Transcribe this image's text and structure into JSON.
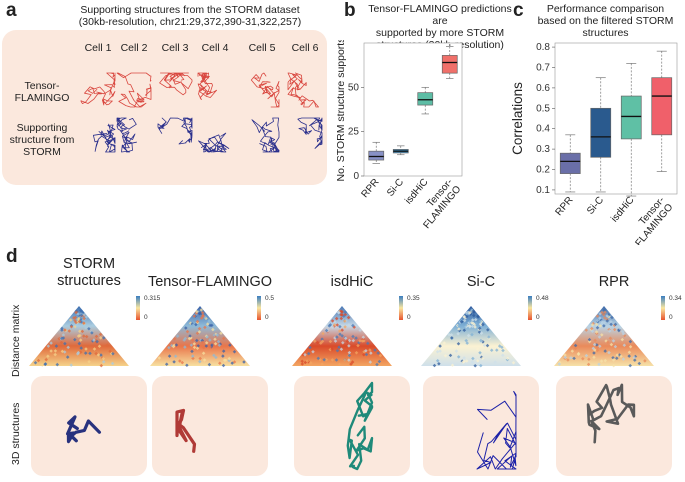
{
  "panel_a": {
    "label": "a",
    "title_line1": "Supporting structures from the STORM dataset",
    "title_line2": "(30kb-resolution, chr21:29,372,390-31,322,257)",
    "cells": [
      "Cell 1",
      "Cell 2",
      "Cell 3",
      "Cell 4",
      "Cell 5",
      "Cell 6"
    ],
    "row1_label_line1": "Tensor-",
    "row1_label_line2": "FLAMINGO",
    "row2_label_line1": "Supporting",
    "row2_label_line2": "structure from",
    "row2_label_line3": "STORM",
    "colors": {
      "row1": "#d9473f",
      "row2": "#2a2f8c",
      "background": "#fbe8dd"
    }
  },
  "panel_b": {
    "label": "b",
    "title_line1": "Tensor-FLAMINGO predictions are",
    "title_line2": "supported by more STORM",
    "title_line3": "structures (30kb-resolution)"
  },
  "panel_c": {
    "label": "c",
    "title_line1": "Performance comparison",
    "title_line2": "based on the filtered STORM",
    "title_line3": "structures"
  },
  "chart_data": [
    {
      "type": "box",
      "ylabel": "No. STORM structure supports",
      "ylim": [
        0,
        75
      ],
      "yticks": [
        "0",
        "25",
        "50"
      ],
      "ytick_values": [
        0,
        25,
        50
      ],
      "categories": [
        "RPR",
        "Si-C",
        "isdHiC",
        "Tensor-FLAMINGO"
      ],
      "category_labels": [
        [
          "RPR"
        ],
        [
          "Si-C"
        ],
        [
          "isdHiC"
        ],
        [
          "Tensor-",
          "FLAMINGO"
        ]
      ],
      "colors": [
        "#8891c6",
        "#3a86b8",
        "#5dbda5",
        "#f0706a"
      ],
      "boxes": [
        {
          "min": 7,
          "q1": 9,
          "median": 11,
          "q3": 14,
          "max": 19
        },
        {
          "min": 12,
          "q1": 13,
          "median": 14,
          "q3": 15,
          "max": 17
        },
        {
          "min": 35,
          "q1": 40,
          "median": 43,
          "q3": 47,
          "max": 50
        },
        {
          "min": 55,
          "q1": 58,
          "median": 64,
          "q3": 68,
          "max": 73
        }
      ],
      "outliers": [
        {
          "category": 3,
          "value": 93
        }
      ]
    },
    {
      "type": "box",
      "ylabel": "Correlations",
      "ylim": [
        0.08,
        0.82
      ],
      "yticks": [
        "0.1",
        "0.2",
        "0.3",
        "0.4",
        "0.5",
        "0.6",
        "0.7",
        "0.8"
      ],
      "ytick_values": [
        0.1,
        0.2,
        0.3,
        0.4,
        0.5,
        0.6,
        0.7,
        0.8
      ],
      "categories": [
        "RPR",
        "Si-C",
        "isdHiC",
        "Tensor-FLAMINGO"
      ],
      "category_labels": [
        [
          "RPR"
        ],
        [
          "Si-C"
        ],
        [
          "isdHiC"
        ],
        [
          "Tensor-",
          "FLAMINGO"
        ]
      ],
      "colors": [
        "#6a6fa8",
        "#2a5a8e",
        "#5fc0a5",
        "#f0606a"
      ],
      "boxes": [
        {
          "min": 0.09,
          "q1": 0.18,
          "median": 0.24,
          "q3": 0.28,
          "max": 0.37
        },
        {
          "min": 0.09,
          "q1": 0.26,
          "median": 0.36,
          "q3": 0.5,
          "max": 0.65
        },
        {
          "min": 0.07,
          "q1": 0.35,
          "median": 0.46,
          "q3": 0.56,
          "max": 0.72
        },
        {
          "min": 0.19,
          "q1": 0.37,
          "median": 0.56,
          "q3": 0.65,
          "max": 0.78
        }
      ]
    }
  ],
  "panel_d": {
    "label": "d",
    "row_label_matrix": "Distance matrix",
    "row_label_structures": "3D structures",
    "methods": [
      {
        "title_line1": "STORM",
        "title_line2": "structures",
        "cbar_max": "0.315",
        "cbar_min": "0",
        "color": "#28327e"
      },
      {
        "title_line1": "Tensor-FLAMINGO",
        "title_line2": "",
        "cbar_max": "0.5",
        "cbar_min": "0",
        "color": "#b03a36"
      },
      {
        "title_line1": "isdHiC",
        "title_line2": "",
        "cbar_max": "0.35",
        "cbar_min": "0",
        "color": "#1f8a7a"
      },
      {
        "title_line1": "Si-C",
        "title_line2": "",
        "cbar_max": "0.48",
        "cbar_min": "0",
        "color": "#1d22a8"
      },
      {
        "title_line1": "RPR",
        "title_line2": "",
        "cbar_max": "0.34",
        "cbar_min": "0",
        "color": "#5a5a5a"
      }
    ]
  }
}
